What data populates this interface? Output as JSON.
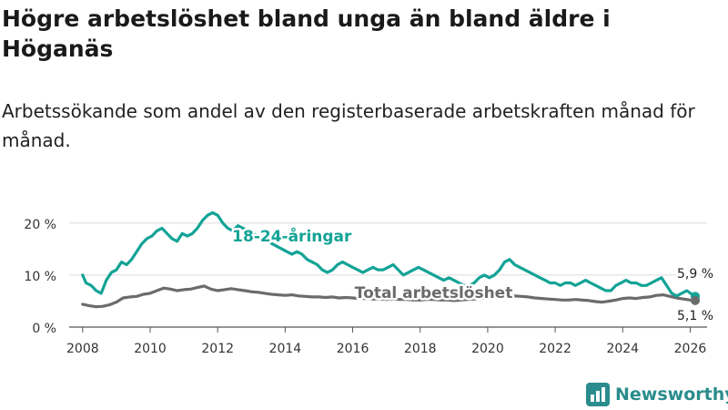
{
  "title": "Högre arbetslöshet bland unga än bland äldre i Höganäs",
  "subtitle": "Arbetssökande som andel av den registerbaserade arbetskraften månad för månad.",
  "brand": {
    "name": "Newsworthy",
    "icon": "bar-chart-logo-icon"
  },
  "colors": {
    "youth": "#13a396",
    "total": "#6b6b6b",
    "grid": "#dcdcdc",
    "axis": "#555555",
    "brand": "#2a8c8c"
  },
  "chart_data": {
    "type": "line",
    "xlabel": "",
    "ylabel": "",
    "x_range": [
      2007.6,
      2026.5
    ],
    "ylim": [
      0,
      24
    ],
    "y_ticks": [
      0,
      10,
      20
    ],
    "y_tick_labels": [
      "0 %",
      "10 %",
      "20 %"
    ],
    "x_ticks": [
      2008,
      2010,
      2012,
      2014,
      2016,
      2018,
      2020,
      2022,
      2024,
      2026
    ],
    "x_tick_labels": [
      "2008",
      "2010",
      "2012",
      "2014",
      "2016",
      "2018",
      "2020",
      "2022",
      "2024",
      "2026"
    ],
    "grid": true,
    "series": [
      {
        "name": "18-24-åringar",
        "label": "18-24-åringar",
        "color": "#13a396",
        "end_label": "5,9 %",
        "points": [
          [
            2008.0,
            10.0
          ],
          [
            2008.1,
            8.5
          ],
          [
            2008.25,
            8.0
          ],
          [
            2008.4,
            7.0
          ],
          [
            2008.55,
            6.5
          ],
          [
            2008.7,
            9.0
          ],
          [
            2008.85,
            10.5
          ],
          [
            2009.0,
            11.0
          ],
          [
            2009.15,
            12.5
          ],
          [
            2009.3,
            12.0
          ],
          [
            2009.45,
            13.0
          ],
          [
            2009.6,
            14.5
          ],
          [
            2009.75,
            16.0
          ],
          [
            2009.9,
            17.0
          ],
          [
            2010.05,
            17.5
          ],
          [
            2010.2,
            18.5
          ],
          [
            2010.35,
            19.0
          ],
          [
            2010.5,
            18.0
          ],
          [
            2010.65,
            17.0
          ],
          [
            2010.8,
            16.5
          ],
          [
            2010.95,
            18.0
          ],
          [
            2011.1,
            17.5
          ],
          [
            2011.25,
            18.0
          ],
          [
            2011.4,
            19.0
          ],
          [
            2011.55,
            20.5
          ],
          [
            2011.7,
            21.5
          ],
          [
            2011.85,
            22.0
          ],
          [
            2012.0,
            21.5
          ],
          [
            2012.15,
            20.0
          ],
          [
            2012.3,
            19.0
          ],
          [
            2012.45,
            18.5
          ],
          [
            2012.6,
            19.5
          ],
          [
            2012.75,
            19.0
          ],
          [
            2012.9,
            18.5
          ],
          [
            2013.05,
            18.0
          ],
          [
            2014.05,
            14.5
          ],
          [
            2014.2,
            14.0
          ],
          [
            2014.35,
            14.5
          ],
          [
            2014.5,
            14.0
          ],
          [
            2014.65,
            13.0
          ],
          [
            2014.8,
            12.5
          ],
          [
            2014.95,
            12.0
          ],
          [
            2015.1,
            11.0
          ],
          [
            2015.25,
            10.5
          ],
          [
            2015.4,
            11.0
          ],
          [
            2015.55,
            12.0
          ],
          [
            2015.7,
            12.5
          ],
          [
            2015.85,
            12.0
          ],
          [
            2016.0,
            11.5
          ],
          [
            2016.15,
            11.0
          ],
          [
            2016.3,
            10.5
          ],
          [
            2016.45,
            11.0
          ],
          [
            2016.6,
            11.5
          ],
          [
            2016.75,
            11.0
          ],
          [
            2016.9,
            11.0
          ],
          [
            2017.05,
            11.5
          ],
          [
            2017.2,
            12.0
          ],
          [
            2017.35,
            11.0
          ],
          [
            2017.5,
            10.0
          ],
          [
            2017.65,
            10.5
          ],
          [
            2017.8,
            11.0
          ],
          [
            2017.95,
            11.5
          ],
          [
            2018.1,
            11.0
          ],
          [
            2018.25,
            10.5
          ],
          [
            2018.4,
            10.0
          ],
          [
            2018.55,
            9.5
          ],
          [
            2018.7,
            9.0
          ],
          [
            2018.85,
            9.5
          ],
          [
            2019.0,
            9.0
          ],
          [
            2019.15,
            8.5
          ],
          [
            2019.3,
            8.0
          ],
          [
            2019.45,
            8.0
          ],
          [
            2019.6,
            8.5
          ],
          [
            2019.75,
            9.5
          ],
          [
            2019.9,
            10.0
          ],
          [
            2020.05,
            9.5
          ],
          [
            2020.2,
            10.0
          ],
          [
            2020.35,
            11.0
          ],
          [
            2020.5,
            12.5
          ],
          [
            2020.65,
            13.0
          ],
          [
            2020.8,
            12.0
          ],
          [
            2020.95,
            11.5
          ],
          [
            2021.1,
            11.0
          ],
          [
            2021.25,
            10.5
          ],
          [
            2021.4,
            10.0
          ],
          [
            2021.55,
            9.5
          ],
          [
            2021.7,
            9.0
          ],
          [
            2021.85,
            8.5
          ],
          [
            2022.0,
            8.5
          ],
          [
            2022.15,
            8.0
          ],
          [
            2022.3,
            8.5
          ],
          [
            2022.45,
            8.5
          ],
          [
            2022.6,
            8.0
          ],
          [
            2022.75,
            8.5
          ],
          [
            2022.9,
            9.0
          ],
          [
            2023.05,
            8.5
          ],
          [
            2023.2,
            8.0
          ],
          [
            2023.35,
            7.5
          ],
          [
            2023.5,
            7.0
          ],
          [
            2023.65,
            7.0
          ],
          [
            2023.8,
            8.0
          ],
          [
            2023.95,
            8.5
          ],
          [
            2024.1,
            9.0
          ],
          [
            2024.25,
            8.5
          ],
          [
            2024.4,
            8.5
          ],
          [
            2024.55,
            8.0
          ],
          [
            2024.7,
            8.0
          ],
          [
            2024.85,
            8.5
          ],
          [
            2025.0,
            9.0
          ],
          [
            2025.15,
            9.5
          ],
          [
            2025.3,
            8.0
          ],
          [
            2025.45,
            6.5
          ],
          [
            2025.6,
            6.0
          ],
          [
            2025.75,
            6.5
          ],
          [
            2025.9,
            7.0
          ],
          [
            2026.05,
            6.3
          ],
          [
            2026.15,
            5.9
          ]
        ]
      },
      {
        "name": "Total arbetslöshet",
        "label": "Total arbetslöshet",
        "color": "#6b6b6b",
        "end_label": "5,1 %",
        "points": [
          [
            2008.0,
            4.4
          ],
          [
            2008.2,
            4.1
          ],
          [
            2008.4,
            3.9
          ],
          [
            2008.6,
            4.0
          ],
          [
            2008.8,
            4.3
          ],
          [
            2009.0,
            4.8
          ],
          [
            2009.2,
            5.6
          ],
          [
            2009.4,
            5.8
          ],
          [
            2009.6,
            5.9
          ],
          [
            2009.8,
            6.3
          ],
          [
            2010.0,
            6.5
          ],
          [
            2010.2,
            7.0
          ],
          [
            2010.4,
            7.5
          ],
          [
            2010.6,
            7.3
          ],
          [
            2010.8,
            7.0
          ],
          [
            2011.0,
            7.2
          ],
          [
            2011.2,
            7.3
          ],
          [
            2011.4,
            7.6
          ],
          [
            2011.6,
            7.9
          ],
          [
            2011.8,
            7.3
          ],
          [
            2012.0,
            7.0
          ],
          [
            2012.2,
            7.2
          ],
          [
            2012.4,
            7.4
          ],
          [
            2012.6,
            7.2
          ],
          [
            2012.8,
            7.0
          ],
          [
            2013.0,
            6.8
          ],
          [
            2013.2,
            6.7
          ],
          [
            2013.4,
            6.5
          ],
          [
            2013.6,
            6.3
          ],
          [
            2013.8,
            6.2
          ],
          [
            2014.0,
            6.1
          ],
          [
            2014.2,
            6.2
          ],
          [
            2014.4,
            6.0
          ],
          [
            2014.6,
            5.9
          ],
          [
            2014.8,
            5.8
          ],
          [
            2015.0,
            5.8
          ],
          [
            2015.2,
            5.7
          ],
          [
            2015.4,
            5.8
          ],
          [
            2015.6,
            5.6
          ],
          [
            2015.8,
            5.7
          ],
          [
            2016.0,
            5.6
          ],
          [
            2016.2,
            5.5
          ],
          [
            2016.4,
            5.5
          ],
          [
            2016.6,
            5.4
          ],
          [
            2016.8,
            5.4
          ],
          [
            2017.0,
            5.3
          ],
          [
            2017.2,
            5.4
          ],
          [
            2017.4,
            5.3
          ],
          [
            2017.6,
            5.3
          ],
          [
            2017.8,
            5.2
          ],
          [
            2018.0,
            5.2
          ],
          [
            2018.2,
            5.3
          ],
          [
            2018.4,
            5.3
          ],
          [
            2018.6,
            5.2
          ],
          [
            2018.8,
            5.2
          ],
          [
            2019.0,
            5.1
          ],
          [
            2019.2,
            5.2
          ],
          [
            2019.4,
            5.3
          ],
          [
            2019.6,
            5.4
          ],
          [
            2019.8,
            5.5
          ],
          [
            2020.0,
            5.7
          ],
          [
            2020.2,
            5.9
          ],
          [
            2020.4,
            6.1
          ],
          [
            2020.6,
            6.2
          ],
          [
            2020.8,
            6.0
          ],
          [
            2021.0,
            5.9
          ],
          [
            2021.2,
            5.8
          ],
          [
            2021.4,
            5.6
          ],
          [
            2021.6,
            5.5
          ],
          [
            2021.8,
            5.4
          ],
          [
            2022.0,
            5.3
          ],
          [
            2022.2,
            5.2
          ],
          [
            2022.4,
            5.2
          ],
          [
            2022.6,
            5.3
          ],
          [
            2022.8,
            5.2
          ],
          [
            2023.0,
            5.1
          ],
          [
            2023.2,
            4.9
          ],
          [
            2023.4,
            4.8
          ],
          [
            2023.6,
            5.0
          ],
          [
            2023.8,
            5.2
          ],
          [
            2024.0,
            5.5
          ],
          [
            2024.2,
            5.6
          ],
          [
            2024.4,
            5.5
          ],
          [
            2024.6,
            5.7
          ],
          [
            2024.8,
            5.8
          ],
          [
            2025.0,
            6.1
          ],
          [
            2025.2,
            6.2
          ],
          [
            2025.4,
            5.9
          ],
          [
            2025.6,
            5.6
          ],
          [
            2025.8,
            5.4
          ],
          [
            2026.0,
            5.2
          ],
          [
            2026.15,
            5.1
          ]
        ]
      }
    ]
  }
}
